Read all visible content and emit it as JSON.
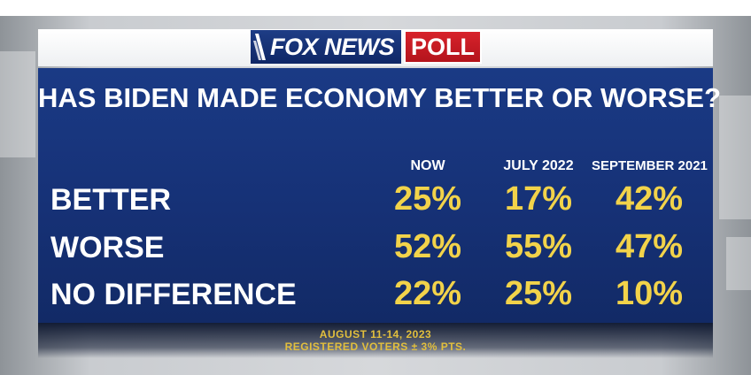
{
  "logo": {
    "brand": "FOX NEWS",
    "tag": "POLL"
  },
  "title": "HAS BIDEN MADE ECONOMY BETTER OR WORSE?",
  "columns": [
    "NOW",
    "JULY 2022",
    "SEPTEMBER 2021"
  ],
  "rows": [
    {
      "label": "BETTER",
      "values": [
        "25%",
        "17%",
        "42%"
      ]
    },
    {
      "label": "WORSE",
      "values": [
        "52%",
        "55%",
        "47%"
      ]
    },
    {
      "label": "NO DIFFERENCE",
      "values": [
        "22%",
        "25%",
        "10%"
      ]
    }
  ],
  "footer": {
    "dates": "AUGUST 11-14, 2023",
    "sample": "REGISTERED VOTERS ± 3% PTS."
  },
  "colors": {
    "panel": "#163176",
    "value": "#f2d34a",
    "poll_red": "#d8222b",
    "footer_text": "#e2bf3d"
  }
}
